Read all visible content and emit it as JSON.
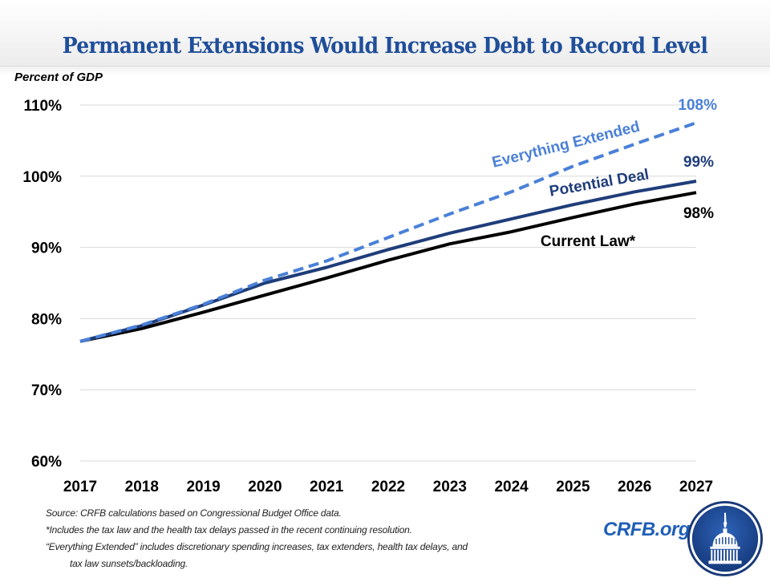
{
  "title": "Permanent Extensions Would Increase Debt to Record Level",
  "colors": {
    "title": "#1f4e9a",
    "everything_extended": "#4a80d8",
    "potential_deal": "#1f3d7a",
    "current_law": "#000000",
    "grid": "#d9d9d9",
    "brand": "#1f5fb8"
  },
  "chart_data": {
    "type": "line",
    "title": "Permanent Extensions Would Increase Debt to Record Level",
    "xlabel": "",
    "ylabel": "Percent of GDP",
    "x": [
      "2017",
      "2018",
      "2019",
      "2020",
      "2021",
      "2022",
      "2023",
      "2024",
      "2025",
      "2026",
      "2027"
    ],
    "ylim": [
      60,
      110
    ],
    "yticks": [
      60,
      70,
      80,
      90,
      100,
      110
    ],
    "ytick_labels": [
      "60%",
      "70%",
      "80%",
      "90%",
      "100%",
      "110%"
    ],
    "grid": true,
    "legend": "inline labels",
    "series": [
      {
        "name": "Everything Extended",
        "style": "dashed",
        "color": "#4a80d8",
        "values": [
          76.8,
          79.1,
          82.0,
          85.4,
          88.1,
          91.4,
          94.7,
          97.8,
          101.4,
          104.5,
          107.5
        ],
        "end_label": "108%"
      },
      {
        "name": "Potential Deal",
        "style": "solid",
        "color": "#1f3d7a",
        "values": [
          76.8,
          79.0,
          81.9,
          85.0,
          87.2,
          89.7,
          92.0,
          94.0,
          96.0,
          97.8,
          99.3
        ],
        "end_label": "99%"
      },
      {
        "name": "Current Law*",
        "style": "solid",
        "color": "#000000",
        "values": [
          76.8,
          78.6,
          80.9,
          83.3,
          85.7,
          88.2,
          90.5,
          92.2,
          94.2,
          96.1,
          97.7
        ],
        "end_label": "98%"
      }
    ]
  },
  "notes": [
    "Source: CRFB calculations based on Congressional Budget Office data.",
    "*Includes the tax law and the health tax delays passed in the recent continuing resolution.",
    "“Everything Extended” includes discretionary spending increases, tax extenders, health tax delays, and",
    "tax law sunsets/backloading."
  ],
  "brand": {
    "text": "CRFB.org",
    "logo_icon": "capitol-dome-icon"
  }
}
